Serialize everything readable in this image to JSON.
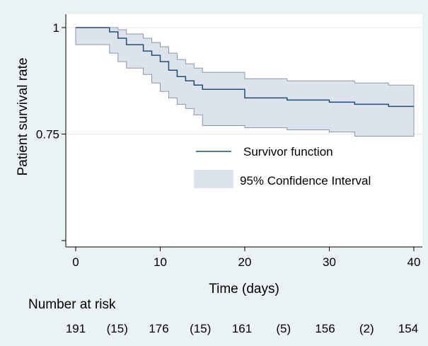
{
  "chart_data": {
    "type": "line",
    "title": "",
    "xlabel": "Time (days)",
    "ylabel": "Patient survival rate",
    "xlim": [
      0,
      40
    ],
    "ylim": [
      0.5,
      1.0
    ],
    "x_ticks": [
      "0",
      "10",
      "20",
      "30",
      "40"
    ],
    "y_ticks": [
      "1",
      "0.75"
    ],
    "grid": "horizontal",
    "legend": {
      "placement": "center-right",
      "entries": [
        "Survivor function",
        "95% Confidence Interval"
      ]
    },
    "series": [
      {
        "name": "Survivor function",
        "x": [
          0,
          4,
          5,
          6,
          8,
          9,
          10,
          11,
          12,
          13,
          14,
          15,
          20,
          25,
          30,
          33,
          37,
          40
        ],
        "y": [
          1.0,
          0.99,
          0.975,
          0.96,
          0.945,
          0.935,
          0.92,
          0.9,
          0.885,
          0.875,
          0.865,
          0.855,
          0.835,
          0.83,
          0.825,
          0.82,
          0.815,
          0.815
        ],
        "ci_lower": [
          1.0,
          0.96,
          0.94,
          0.92,
          0.905,
          0.89,
          0.87,
          0.85,
          0.835,
          0.82,
          0.81,
          0.795,
          0.77,
          0.765,
          0.76,
          0.755,
          0.745,
          0.745
        ],
        "ci_upper": [
          1.0,
          1.0,
          0.995,
          0.985,
          0.975,
          0.965,
          0.955,
          0.94,
          0.925,
          0.915,
          0.905,
          0.895,
          0.88,
          0.875,
          0.875,
          0.87,
          0.865,
          0.865
        ]
      }
    ],
    "risk_table": {
      "title": "Number at risk",
      "values": [
        "191",
        "(15)",
        "176",
        "(15)",
        "161",
        "(5)",
        "156",
        "(2)",
        "154"
      ]
    },
    "colors": {
      "line": "#1f4e79",
      "band_fill": "#dde3ec",
      "band_edge": "#8a97a8",
      "plot_bg": "#ffffff",
      "page_bg": "#eaf2f3",
      "grid": "#e3e8ee"
    }
  }
}
